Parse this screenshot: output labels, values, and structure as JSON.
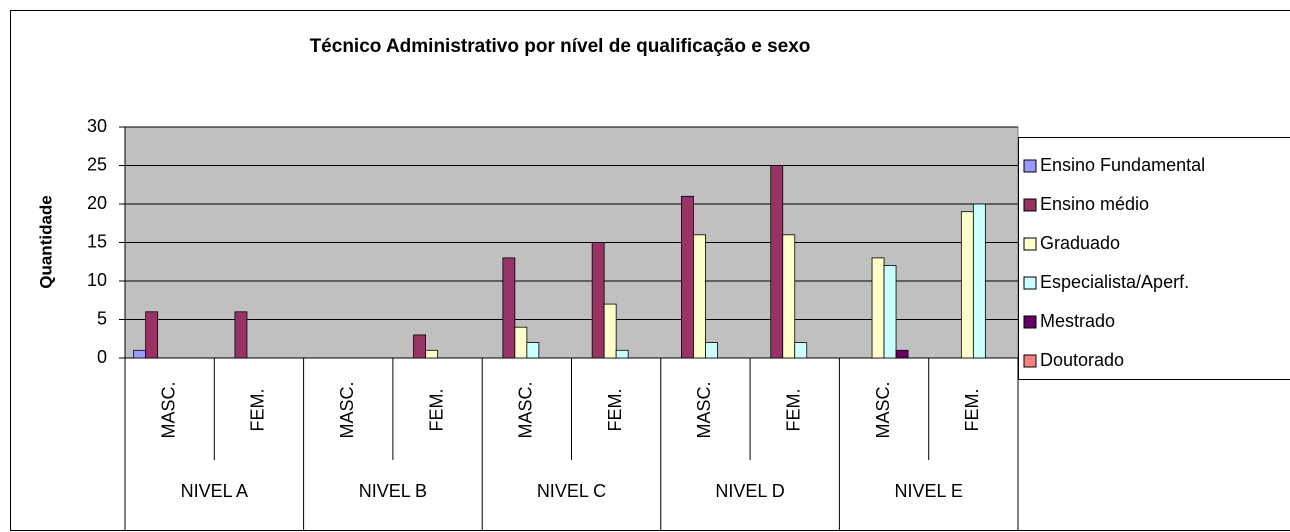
{
  "chart_data": {
    "type": "bar",
    "title": "Técnico Administrativo por nível de qualificação e sexo",
    "y_label": "Quantidade",
    "categories": [
      "MASC.",
      "FEM.",
      "MASC.",
      "FEM.",
      "MASC.",
      "FEM.",
      "MASC.",
      "FEM.",
      "MASC.",
      "FEM."
    ],
    "groups": [
      "NIVEL A",
      "NIVEL B",
      "NIVEL C",
      "NIVEL D",
      "NIVEL E"
    ],
    "series": [
      {
        "name": "Ensino Fundamental",
        "color": "#9999ff",
        "values": [
          1,
          0,
          0,
          0,
          0,
          0,
          0,
          0,
          0,
          0
        ]
      },
      {
        "name": "Ensino médio",
        "color": "#993366",
        "values": [
          6,
          6,
          0,
          3,
          13,
          15,
          21,
          25,
          0,
          0
        ]
      },
      {
        "name": "Graduado",
        "color": "#ffffcc",
        "values": [
          0,
          0,
          0,
          1,
          4,
          7,
          16,
          16,
          13,
          19
        ]
      },
      {
        "name": "Especialista/Aperf.",
        "color": "#ccffff",
        "values": [
          0,
          0,
          0,
          0,
          2,
          1,
          2,
          2,
          12,
          20
        ]
      },
      {
        "name": "Mestrado",
        "color": "#660066",
        "values": [
          0,
          0,
          0,
          0,
          0,
          0,
          0,
          0,
          1,
          0
        ]
      },
      {
        "name": "Doutorado",
        "color": "#ff8080",
        "values": [
          0,
          0,
          0,
          0,
          0,
          0,
          0,
          0,
          0,
          0
        ]
      }
    ],
    "ylim": [
      0,
      30
    ],
    "yticks": [
      0,
      5,
      10,
      15,
      20,
      25,
      30
    ],
    "grid": true,
    "legend": "right"
  }
}
